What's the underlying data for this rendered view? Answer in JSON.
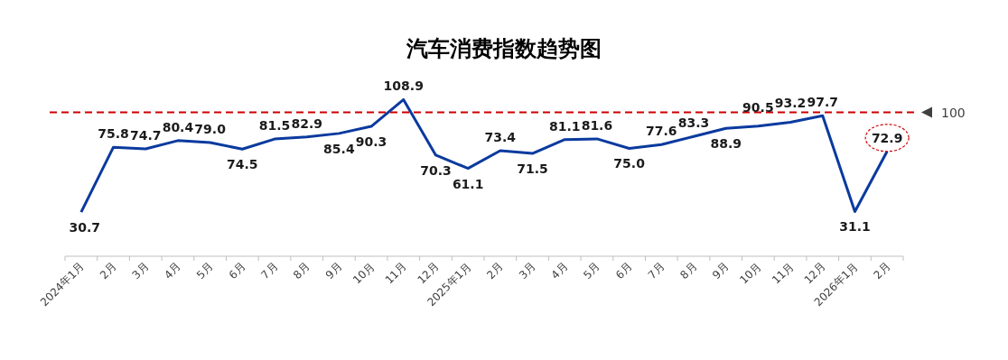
{
  "chart_data": {
    "type": "line",
    "title": "汽车消费指数趋势图",
    "categories": [
      "2024年1月",
      "2月",
      "3月",
      "4月",
      "5月",
      "6月",
      "7月",
      "8月",
      "9月",
      "10月",
      "11月",
      "12月",
      "2025年1月",
      "2月",
      "3月",
      "4月",
      "5月",
      "6月",
      "7月",
      "8月",
      "9月",
      "10月",
      "11月",
      "12月",
      "2026年1月",
      "2月"
    ],
    "series": [
      {
        "color": "#0a3a9e",
        "values": [
          30.7,
          75.8,
          74.7,
          80.4,
          79.0,
          74.5,
          81.5,
          82.9,
          85.4,
          90.3,
          108.9,
          70.3,
          61.1,
          73.4,
          71.5,
          81.1,
          81.6,
          75.0,
          77.6,
          83.3,
          88.9,
          90.5,
          93.2,
          97.7,
          31.1,
          72.9
        ],
        "value_labels": [
          "30.7",
          "75.8",
          "74.7",
          "80.4",
          "79.0",
          "74.5",
          "81.5",
          "82.9",
          "85.4",
          "90.3",
          "108.9",
          "70.3",
          "61.1",
          "73.4",
          "71.5",
          "81.1",
          "81.6",
          "75.0",
          "77.6",
          "83.3",
          "88.9",
          "90.5",
          "93.2",
          "97.7",
          "31.1",
          "72.9"
        ]
      }
    ],
    "marker": "none",
    "line_style": "solid",
    "ref_lines": [
      {
        "axis": "y",
        "value": 100,
        "label": "100",
        "color": "#cc0000",
        "line_style": "dashed"
      }
    ]
  }
}
